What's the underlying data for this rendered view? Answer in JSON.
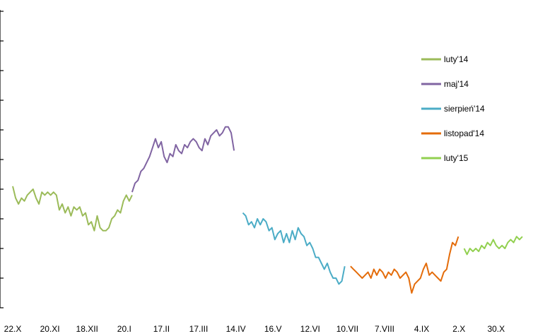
{
  "chart_data": {
    "type": "line",
    "title": "",
    "xlabel": "",
    "ylabel": "",
    "ylim": [
      0,
      10
    ],
    "x_ticks": [
      "22.X",
      "20.XI",
      "18.XII",
      "20.I",
      "17.II",
      "17.III",
      "14.IV",
      "16.V",
      "12.VI",
      "10.VII",
      "7.VIII",
      "4.IX",
      "2.X",
      "30.X"
    ],
    "y_ticks_partially_visible": true,
    "grid": false,
    "legend_position": "right",
    "series": [
      {
        "name": "luty'14",
        "color": "#9BBB59",
        "x": [
          0,
          0.1,
          0.2,
          0.3,
          0.4,
          0.5,
          0.6,
          0.7,
          0.8,
          0.9,
          1.0,
          1.1,
          1.2,
          1.3,
          1.4,
          1.5,
          1.6,
          1.7,
          1.8,
          1.9,
          2.0,
          2.1,
          2.2,
          2.3,
          2.4,
          2.5,
          2.6,
          2.7,
          2.8,
          2.9,
          3.0,
          3.1,
          3.2,
          3.3,
          3.4,
          3.5,
          3.6,
          3.7,
          3.8,
          3.9,
          4.0,
          4.1
        ],
        "values": [
          4.1,
          3.7,
          3.5,
          3.7,
          3.6,
          3.8,
          3.9,
          4.0,
          3.7,
          3.5,
          3.9,
          3.8,
          3.9,
          3.8,
          3.9,
          3.8,
          3.3,
          3.5,
          3.2,
          3.4,
          3.1,
          3.4,
          3.3,
          3.4,
          3.1,
          3.2,
          2.8,
          2.9,
          2.6,
          3.1,
          2.7,
          2.6,
          2.6,
          2.7,
          3.0,
          3.1,
          3.3,
          3.2,
          3.6,
          3.8,
          3.6,
          3.8
        ]
      },
      {
        "name": "maj'14",
        "color": "#8064A2",
        "x": [
          4.1,
          4.2,
          4.3,
          4.4,
          4.5,
          4.6,
          4.7,
          4.8,
          4.9,
          5.0,
          5.1,
          5.2,
          5.3,
          5.4,
          5.5,
          5.6,
          5.7,
          5.8,
          5.9,
          6.0,
          6.1,
          6.2,
          6.3,
          6.4,
          6.5,
          6.6,
          6.7,
          6.8,
          6.9,
          7.0,
          7.1,
          7.2,
          7.3,
          7.4,
          7.5,
          7.6
        ],
        "values": [
          3.9,
          4.2,
          4.3,
          4.6,
          4.7,
          4.9,
          5.1,
          5.4,
          5.7,
          5.4,
          5.6,
          5.1,
          4.9,
          5.2,
          5.1,
          5.5,
          5.3,
          5.2,
          5.5,
          5.4,
          5.6,
          5.7,
          5.6,
          5.4,
          5.3,
          5.7,
          5.5,
          5.8,
          5.9,
          6.0,
          5.8,
          5.9,
          6.1,
          6.1,
          5.9,
          5.3
        ]
      },
      {
        "name": "sierpień'14",
        "color": "#4BACC6",
        "x": [
          7.9,
          8.0,
          8.1,
          8.2,
          8.3,
          8.4,
          8.5,
          8.6,
          8.7,
          8.8,
          8.9,
          9.0,
          9.1,
          9.2,
          9.3,
          9.4,
          9.5,
          9.6,
          9.7,
          9.8,
          9.9,
          10.0,
          10.1,
          10.2,
          10.3,
          10.4,
          10.5,
          10.6,
          10.7,
          10.8,
          10.9,
          11.0,
          11.1,
          11.2,
          11.3,
          11.4
        ],
        "values": [
          3.2,
          3.1,
          2.8,
          2.9,
          2.7,
          3.0,
          2.8,
          3.0,
          2.9,
          2.6,
          2.7,
          2.3,
          2.5,
          2.6,
          2.2,
          2.5,
          2.2,
          2.6,
          2.3,
          2.7,
          2.5,
          2.4,
          2.1,
          2.2,
          2.0,
          1.7,
          1.7,
          1.5,
          1.3,
          1.5,
          1.2,
          1.0,
          1.0,
          0.8,
          0.9,
          1.4
        ]
      },
      {
        "name": "listopad'14",
        "color": "#E46C0A",
        "x": [
          11.6,
          11.7,
          11.8,
          11.9,
          12.0,
          12.1,
          12.2,
          12.3,
          12.4,
          12.5,
          12.6,
          12.7,
          12.8,
          12.9,
          13.0,
          13.1,
          13.2,
          13.3,
          13.4,
          13.5,
          13.6,
          13.7,
          13.8,
          13.9,
          14.0,
          14.1,
          14.2,
          14.3,
          14.4,
          14.5,
          14.6,
          14.7,
          14.8,
          14.9,
          15.0,
          15.1,
          15.2,
          15.3
        ],
        "values": [
          1.4,
          1.3,
          1.2,
          1.1,
          1.0,
          1.1,
          1.2,
          1.0,
          1.3,
          1.1,
          1.3,
          1.2,
          1.0,
          1.2,
          1.1,
          1.3,
          1.2,
          1.0,
          1.1,
          1.2,
          1.0,
          0.5,
          0.8,
          0.9,
          1.0,
          1.3,
          1.5,
          1.1,
          1.2,
          1.1,
          1.0,
          0.9,
          1.2,
          1.3,
          1.8,
          2.2,
          2.1,
          2.4
        ]
      },
      {
        "name": "luty'15",
        "color": "#92D050",
        "x": [
          15.5,
          15.6,
          15.7,
          15.8,
          15.9,
          16.0,
          16.1,
          16.2,
          16.3,
          16.4,
          16.5,
          16.6,
          16.7,
          16.8,
          16.9,
          17.0,
          17.1,
          17.2,
          17.3,
          17.4,
          17.5
        ],
        "values": [
          2.0,
          1.8,
          2.0,
          1.9,
          2.0,
          1.9,
          2.1,
          2.0,
          2.2,
          2.1,
          2.3,
          2.1,
          2.0,
          2.1,
          2.0,
          2.2,
          2.3,
          2.2,
          2.4,
          2.3,
          2.4
        ]
      }
    ]
  }
}
